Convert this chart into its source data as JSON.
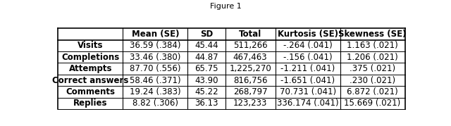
{
  "title": "Figure 1",
  "columns": [
    "",
    "Mean (SE)",
    "SD",
    "Total",
    "Kurtosis (SE)",
    "Skewness (SE)"
  ],
  "rows": [
    [
      "Visits",
      "36.59 (.384)",
      "45.44",
      "511,266",
      "-.264 (.041)",
      "1.163 (.021)"
    ],
    [
      "Completions",
      "33.46 (.380)",
      "44.87",
      "467,463",
      "-.156 (.041)",
      "1.206 (.021)"
    ],
    [
      "Attempts",
      "87.70 (.556)",
      "65.75",
      "1,225,270",
      "-1.211 (.041)",
      ".375 (.021)"
    ],
    [
      "Correct answers",
      "58.46 (.371)",
      "43.90",
      "816,756",
      "-1.651 (.041)",
      ".230 (.021)"
    ],
    [
      "Comments",
      "19.24 (.383)",
      "45.22",
      "268,797",
      "70.731 (.041)",
      "6.872 (.021)"
    ],
    [
      "Replies",
      "8.82 (.306)",
      "36.13",
      "123,233",
      "336.174 (.041)",
      "15.669 (.021)"
    ]
  ],
  "figsize": [
    6.4,
    1.79
  ],
  "dpi": 100,
  "font_size": 8.5,
  "border_color": "#000000",
  "text_color": "#000000",
  "col_widths": [
    1.55,
    1.55,
    0.9,
    1.2,
    1.55,
    1.55
  ]
}
